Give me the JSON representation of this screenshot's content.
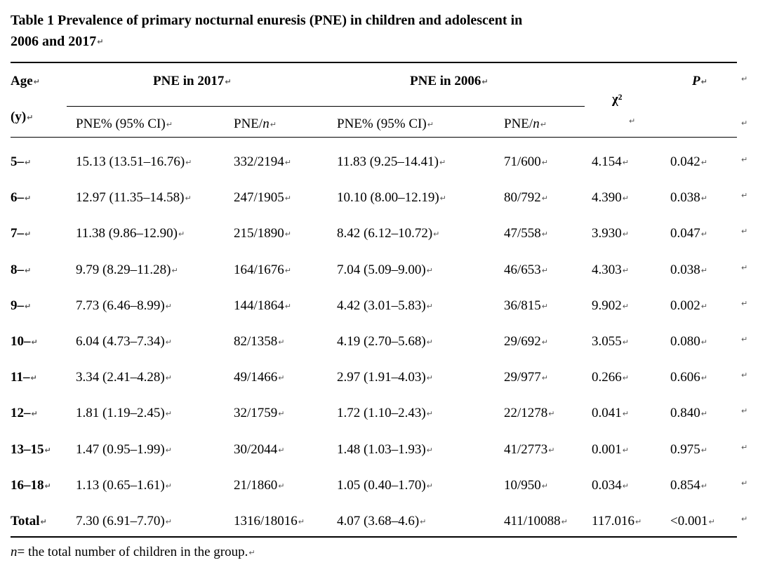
{
  "title_line1": "Table 1 Prevalence of primary nocturnal enuresis (PNE) in children and adolescent in",
  "title_line2": "2006 and 2017",
  "headers": {
    "age": "Age",
    "age_unit": "(y)",
    "group_2017": "PNE in 2017",
    "group_2006": "PNE in 2006",
    "chi2": "χ²",
    "p": "P",
    "pct": "PNE% (95% CI)",
    "ratio_pre": "PNE/",
    "ratio_n": "n"
  },
  "rows": [
    {
      "age": "5–",
      "pct2017": "15.13 (13.51–16.76)",
      "n2017": "332/2194",
      "pct2006": "11.83 (9.25–14.41)",
      "n2006": "71/600",
      "chi2": "4.154",
      "p": "0.042"
    },
    {
      "age": "6–",
      "pct2017": "12.97 (11.35–14.58)",
      "n2017": "247/1905",
      "pct2006": "10.10 (8.00–12.19)",
      "n2006": "80/792",
      "chi2": "4.390",
      "p": "0.038"
    },
    {
      "age": "7–",
      "pct2017": "11.38 (9.86–12.90)",
      "n2017": "215/1890",
      "pct2006": "8.42 (6.12–10.72)",
      "n2006": "47/558",
      "chi2": "3.930",
      "p": "0.047"
    },
    {
      "age": "8–",
      "pct2017": "9.79 (8.29–11.28)",
      "n2017": "164/1676",
      "pct2006": "7.04 (5.09–9.00)",
      "n2006": "46/653",
      "chi2": "4.303",
      "p": "0.038"
    },
    {
      "age": "9–",
      "pct2017": "7.73 (6.46–8.99)",
      "n2017": "144/1864",
      "pct2006": "4.42 (3.01–5.83)",
      "n2006": "36/815",
      "chi2": "9.902",
      "p": "0.002"
    },
    {
      "age": "10–",
      "pct2017": "6.04 (4.73–7.34)",
      "n2017": "82/1358",
      "pct2006": "4.19 (2.70–5.68)",
      "n2006": "29/692",
      "chi2": "3.055",
      "p": "0.080"
    },
    {
      "age": "11–",
      "pct2017": "3.34 (2.41–4.28)",
      "n2017": "49/1466",
      "pct2006": "2.97 (1.91–4.03)",
      "n2006": "29/977",
      "chi2": "0.266",
      "p": "0.606"
    },
    {
      "age": "12–",
      "pct2017": "1.81 (1.19–2.45)",
      "n2017": "32/1759",
      "pct2006": "1.72 (1.10–2.43)",
      "n2006": "22/1278",
      "chi2": "0.041",
      "p": "0.840"
    },
    {
      "age": "13–15",
      "pct2017": "1.47 (0.95–1.99)",
      "n2017": "30/2044",
      "pct2006": "1.48 (1.03–1.93)",
      "n2006": "41/2773",
      "chi2": "0.001",
      "p": "0.975"
    },
    {
      "age": "16–18",
      "pct2017": "1.13 (0.65–1.61)",
      "n2017": "21/1860",
      "pct2006": "1.05 (0.40–1.70)",
      "n2006": "10/950",
      "chi2": "0.034",
      "p": "0.854"
    },
    {
      "age": "Total",
      "pct2017": "7.30 (6.91–7.70)",
      "n2017": "1316/18016",
      "pct2006": "4.07 (3.68–4.6)",
      "n2006": "411/10088",
      "chi2": "117.016",
      "p": "<0.001"
    }
  ],
  "footnote_var": "n",
  "footnote_text": "= the total number of children in the group.",
  "mark": "↵"
}
